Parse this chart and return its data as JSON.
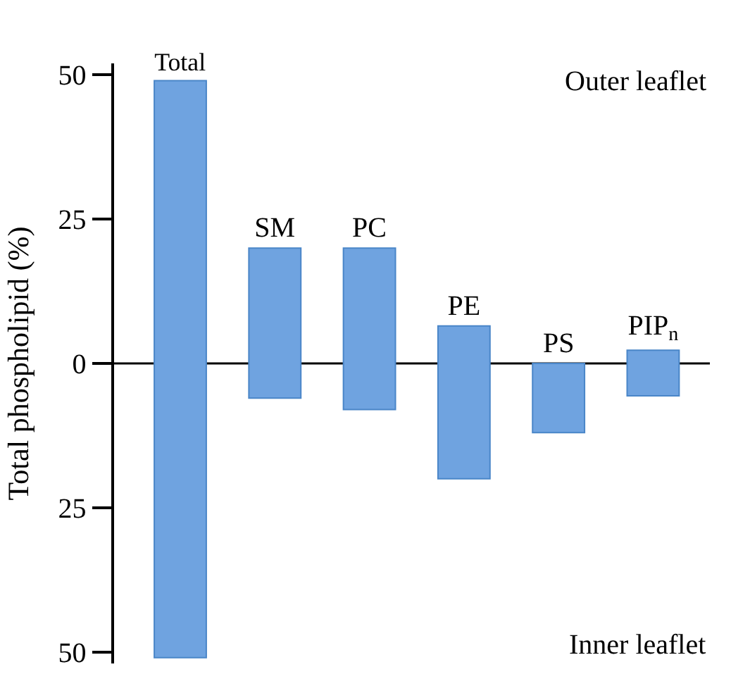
{
  "chart_data": {
    "type": "bar",
    "ylabel": "Total phospholipid (%)",
    "categories": [
      "Total",
      "SM",
      "PC",
      "PE",
      "PS",
      "PIP$_{n}$"
    ],
    "base": [
      -51,
      -6,
      -8,
      -20,
      -12,
      -5.6
    ],
    "values": [
      100,
      26,
      28,
      26.5,
      12,
      7.9
    ],
    "color": "#6fa3e0",
    "ylim": [
      -52,
      52
    ],
    "yticks": [
      {
        "value": 50,
        "label": "50"
      },
      25,
      0,
      {
        "value": -25,
        "label": "25"
      },
      {
        "value": -50,
        "label": "50"
      }
    ],
    "annotations": [
      "Outer leaflet",
      "Inner leaflet"
    ],
    "tick_labels": "y",
    "ref_lines": [
      {
        "axis": "y",
        "value": 0,
        "color": "#000000"
      }
    ],
    "grid": false,
    "legend": false
  }
}
